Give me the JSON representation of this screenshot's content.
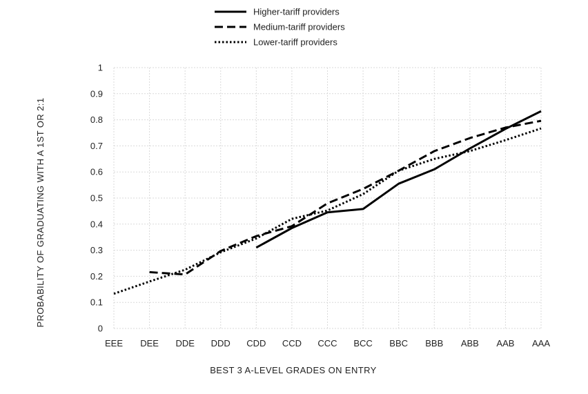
{
  "chart_data": {
    "type": "line",
    "title": "",
    "xlabel": "BEST 3 A-LEVEL GRADES ON ENTRY",
    "ylabel": "PROBABILITY OF GRADUATING WITH A 1ST OR 2:1",
    "categories": [
      "EEE",
      "DEE",
      "DDE",
      "DDD",
      "CDD",
      "CCD",
      "CCC",
      "BCC",
      "BBC",
      "BBB",
      "ABB",
      "AAB",
      "AAA"
    ],
    "ylim": [
      0,
      1
    ],
    "yticks": [
      "0",
      "0.1",
      "0.2",
      "0.3",
      "0.4",
      "0.5",
      "0.6",
      "0.7",
      "0.8",
      "0.9",
      "1"
    ],
    "grid": true,
    "legend_position": "top",
    "series": [
      {
        "name": "Higher-tariff providers",
        "style": "solid",
        "color": "#000000",
        "values": [
          null,
          null,
          null,
          null,
          0.31,
          0.385,
          0.445,
          0.458,
          0.555,
          0.61,
          0.69,
          0.765,
          0.833
        ]
      },
      {
        "name": "Medium-tariff providers",
        "style": "dashed",
        "color": "#000000",
        "values": [
          null,
          0.216,
          0.207,
          0.297,
          0.354,
          0.392,
          0.48,
          0.535,
          0.605,
          0.68,
          0.73,
          0.77,
          0.796
        ]
      },
      {
        "name": "Lower-tariff providers",
        "style": "dotted",
        "color": "#000000",
        "values": [
          0.133,
          0.18,
          0.225,
          0.292,
          0.345,
          0.42,
          0.452,
          0.515,
          0.605,
          0.65,
          0.68,
          0.722,
          0.767
        ]
      }
    ]
  }
}
